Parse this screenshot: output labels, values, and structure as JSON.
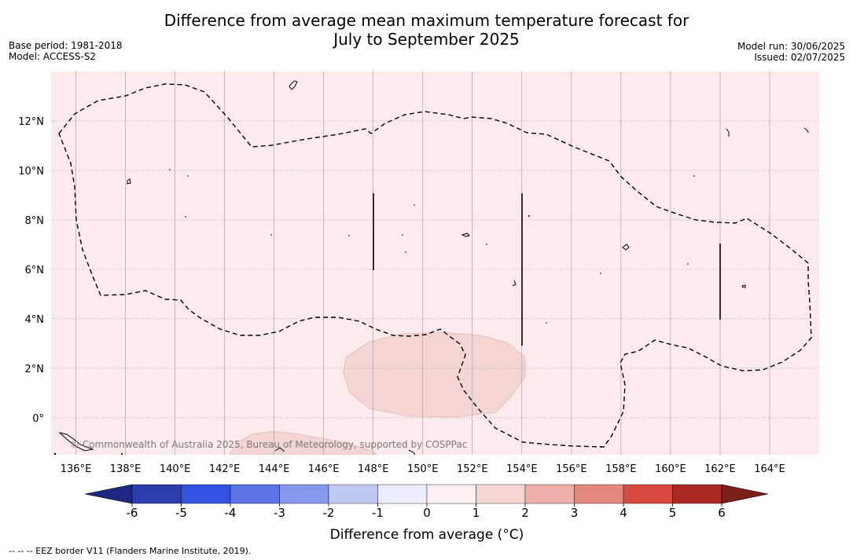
{
  "title_line1": "Difference from average mean maximum temperature forecast for",
  "title_line2": "July to September 2025",
  "base_period": "Base period: 1981-2018",
  "model": "Model: ACCESS-S2",
  "model_run": "Model run: 30/06/2025",
  "issued": "Issued: 02/07/2025",
  "copyright": "© Commonwealth of Australia 2025, Bureau of Meteorology, supported by COSPPac",
  "footnote": "--  --  -- EEZ border V11 (Flanders Marine Institute, 2019).",
  "map": {
    "lon_range": [
      135,
      166
    ],
    "lat_range": [
      -1.5,
      14
    ],
    "lon_ticks": [
      "136°E",
      "138°E",
      "140°E",
      "142°E",
      "144°E",
      "146°E",
      "148°E",
      "150°E",
      "152°E",
      "154°E",
      "156°E",
      "158°E",
      "160°E",
      "162°E",
      "164°E"
    ],
    "lat_ticks": [
      "12°N",
      "10°N",
      "8°N",
      "6°N",
      "4°N",
      "2°N",
      "0°"
    ],
    "background_color": "#fcebea",
    "anomaly_patch_color": "#f3d6d4"
  },
  "colorbar": {
    "label": "Difference from average (°C)",
    "ticks": [
      "-6",
      "-5",
      "-4",
      "-3",
      "-2",
      "-1",
      "0",
      "1",
      "2",
      "3",
      "4",
      "5",
      "6"
    ],
    "colors": [
      "#2a3fad",
      "#3252e0",
      "#5b73e4",
      "#8596ec",
      "#c0c8f4",
      "#eaedfb",
      "#fdf1f0",
      "#f3d6d4",
      "#ecaea9",
      "#e5867f",
      "#d94b40",
      "#a92a24"
    ],
    "low_extend_color": "#1b2a80",
    "high_extend_color": "#7a1f1a"
  }
}
